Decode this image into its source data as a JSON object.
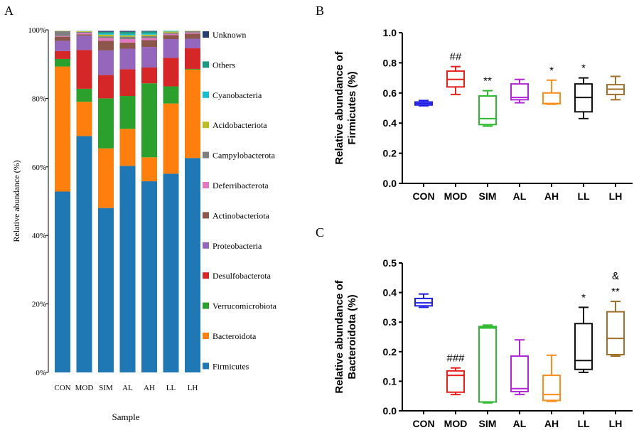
{
  "chart_data": [
    {
      "panel": "A",
      "type": "bar",
      "stacked": true,
      "title": "",
      "xlabel": "Sample",
      "ylabel": "Relative abundance (%)",
      "ylim": [
        0,
        100
      ],
      "yticks": [
        "0%",
        "20%",
        "40%",
        "60%",
        "80%",
        "100%"
      ],
      "categories": [
        "CON",
        "MOD",
        "SIM",
        "AL",
        "AH",
        "LL",
        "LH"
      ],
      "series": [
        {
          "name": "Firmicutes",
          "color": "#1f77b4",
          "values": [
            52.8,
            69.0,
            48.0,
            60.3,
            55.8,
            58.0,
            62.6
          ]
        },
        {
          "name": "Bacteroidota",
          "color": "#ff7f0e",
          "values": [
            36.5,
            10.0,
            17.4,
            10.8,
            7.0,
            20.5,
            25.8
          ]
        },
        {
          "name": "Verrucomicrobiota",
          "color": "#2ca02c",
          "values": [
            2.2,
            3.8,
            14.6,
            9.6,
            21.6,
            5.0,
            0.2
          ]
        },
        {
          "name": "Desulfobacterota",
          "color": "#d62728",
          "values": [
            2.3,
            11.3,
            6.8,
            7.8,
            4.6,
            8.3,
            6.0
          ]
        },
        {
          "name": "Proteobacteria",
          "color": "#9467bd",
          "values": [
            3.0,
            4.2,
            7.2,
            6.0,
            6.0,
            5.5,
            2.8
          ]
        },
        {
          "name": "Actinobacteriota",
          "color": "#8c564b",
          "values": [
            1.2,
            0.4,
            2.8,
            1.8,
            2.0,
            1.2,
            1.5
          ]
        },
        {
          "name": "Deferribacterota",
          "color": "#e377c2",
          "values": [
            0.2,
            0.4,
            0.8,
            1.0,
            0.6,
            0.3,
            0.3
          ]
        },
        {
          "name": "Campylobacterota",
          "color": "#7f7f7f",
          "values": [
            1.4,
            0.3,
            0.5,
            0.7,
            0.6,
            0.4,
            0.4
          ]
        },
        {
          "name": "Acidobacteriota",
          "color": "#bcbd22",
          "values": [
            0.1,
            0.2,
            0.5,
            0.4,
            0.4,
            0.3,
            0.1
          ]
        },
        {
          "name": "Cyanobacteria",
          "color": "#17becf",
          "values": [
            0.1,
            0.1,
            0.4,
            0.4,
            0.4,
            0.2,
            0.1
          ]
        },
        {
          "name": "Others",
          "color": "#1a9a7f",
          "values": [
            0.1,
            0.1,
            0.4,
            0.6,
            0.5,
            0.2,
            0.1
          ]
        },
        {
          "name": "Unknown",
          "color": "#283e72",
          "values": [
            0.1,
            0.2,
            0.6,
            0.6,
            0.5,
            0.1,
            0.1
          ]
        }
      ]
    },
    {
      "panel": "B",
      "type": "box",
      "title": "",
      "xlabel": "",
      "ylabel_line1": "Relative abundance of",
      "ylabel_line2": "Firmicutes (%)",
      "ylim": [
        0,
        1.0
      ],
      "yticks": [
        "0.0",
        "0.2",
        "0.4",
        "0.6",
        "0.8",
        "1.0"
      ],
      "categories": [
        "CON",
        "MOD",
        "SIM",
        "AL",
        "AH",
        "LL",
        "LH"
      ],
      "colors": [
        "#1f1fe6",
        "#e61f1f",
        "#2eb82e",
        "#b026d6",
        "#ff8c1a",
        "#111111",
        "#a0702a"
      ],
      "boxes": [
        {
          "min": 0.515,
          "q1": 0.52,
          "median": 0.53,
          "q3": 0.54,
          "max": 0.55
        },
        {
          "min": 0.59,
          "q1": 0.64,
          "median": 0.69,
          "q3": 0.745,
          "max": 0.775
        },
        {
          "min": 0.38,
          "q1": 0.39,
          "median": 0.43,
          "q3": 0.58,
          "max": 0.615
        },
        {
          "min": 0.535,
          "q1": 0.555,
          "median": 0.57,
          "q3": 0.66,
          "max": 0.69
        },
        {
          "min": 0.525,
          "q1": 0.528,
          "median": 0.53,
          "q3": 0.6,
          "max": 0.685
        },
        {
          "min": 0.43,
          "q1": 0.475,
          "median": 0.57,
          "q3": 0.66,
          "max": 0.7
        },
        {
          "min": 0.555,
          "q1": 0.59,
          "median": 0.625,
          "q3": 0.655,
          "max": 0.71
        }
      ],
      "annotations": [
        "",
        "##",
        "**",
        "",
        "*",
        "*",
        ""
      ]
    },
    {
      "panel": "C",
      "type": "box",
      "title": "",
      "xlabel": "",
      "ylabel_line1": "Relative abundance of",
      "ylabel_line2": "Bacteroidota (%)",
      "ylim": [
        0,
        0.5
      ],
      "yticks": [
        "0.0",
        "0.1",
        "0.2",
        "0.3",
        "0.4",
        "0.5"
      ],
      "categories": [
        "CON",
        "MOD",
        "SIM",
        "AL",
        "AH",
        "LL",
        "LH"
      ],
      "colors": [
        "#1f1fe6",
        "#e61f1f",
        "#2eb82e",
        "#b026d6",
        "#ff8c1a",
        "#111111",
        "#a0702a"
      ],
      "boxes": [
        {
          "min": 0.35,
          "q1": 0.355,
          "median": 0.365,
          "q3": 0.38,
          "max": 0.395
        },
        {
          "min": 0.055,
          "q1": 0.063,
          "median": 0.12,
          "q3": 0.135,
          "max": 0.145
        },
        {
          "min": 0.027,
          "q1": 0.03,
          "median": 0.28,
          "q3": 0.285,
          "max": 0.29
        },
        {
          "min": 0.055,
          "q1": 0.065,
          "median": 0.075,
          "q3": 0.185,
          "max": 0.24
        },
        {
          "min": 0.032,
          "q1": 0.035,
          "median": 0.055,
          "q3": 0.12,
          "max": 0.188
        },
        {
          "min": 0.13,
          "q1": 0.14,
          "median": 0.17,
          "q3": 0.295,
          "max": 0.35
        },
        {
          "min": 0.185,
          "q1": 0.19,
          "median": 0.245,
          "q3": 0.335,
          "max": 0.37
        }
      ],
      "annotations": [
        "",
        "###",
        "",
        "",
        "",
        "*",
        "**"
      ],
      "extra_annotations": [
        {
          "category": "LH",
          "text": "&"
        }
      ]
    }
  ],
  "panel_labels": {
    "a": "A",
    "b": "B",
    "c": "C"
  }
}
